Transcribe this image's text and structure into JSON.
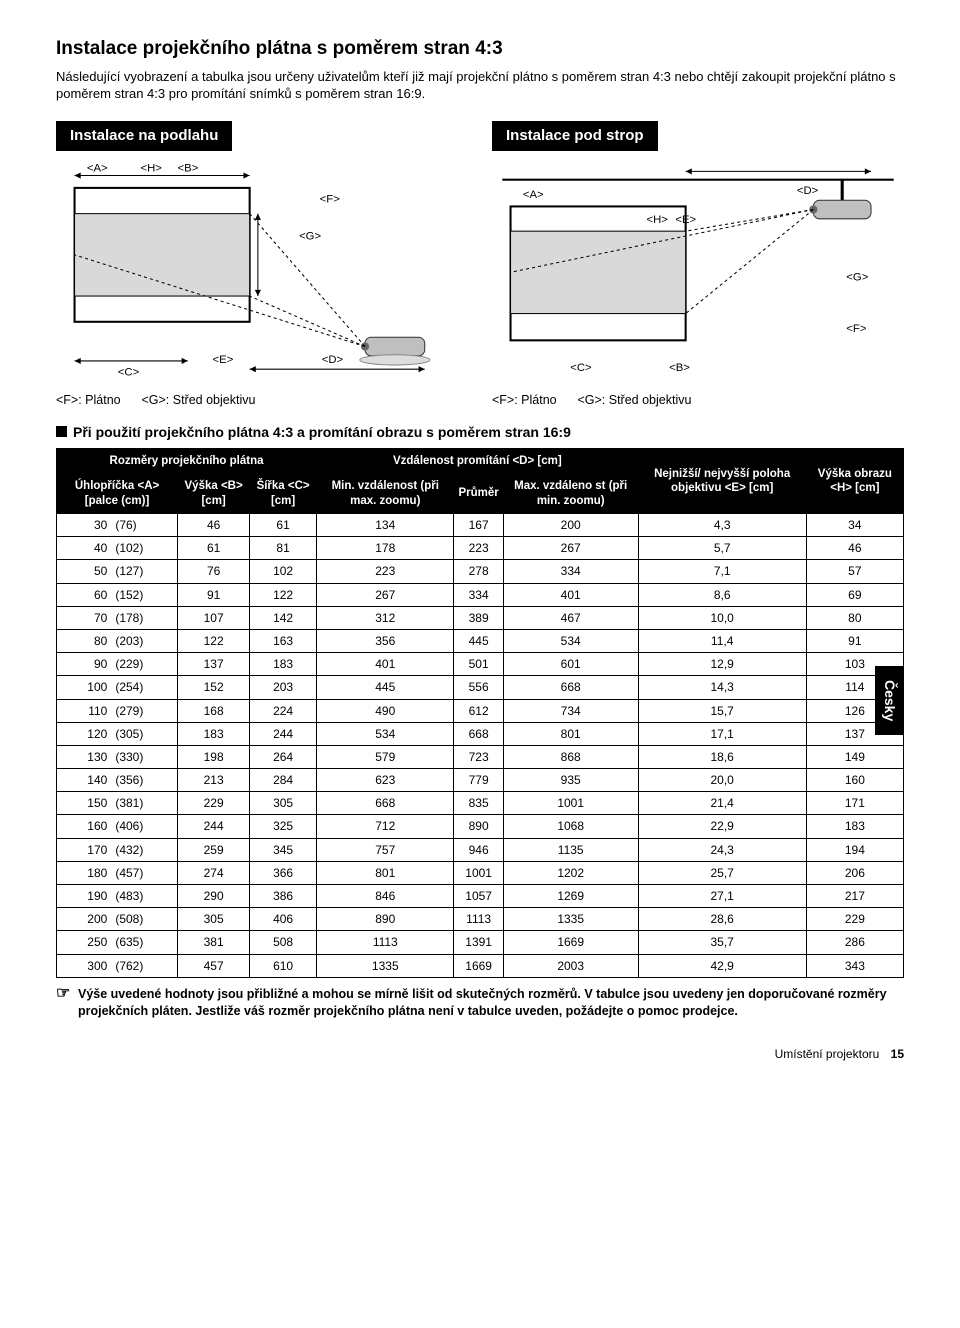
{
  "title": "Instalace projekčního plátna s poměrem stran 4:3",
  "intro": "Následující vyobrazení a tabulka jsou určeny uživatelům kteří již mají projekční plátno s poměrem stran 4:3 nebo chtějí zakoupit projekční plátno s poměrem stran 4:3 pro promítání snímků s poměrem stran 16:9.",
  "diagram_floor_heading": "Instalace na podlahu",
  "diagram_ceiling_heading": "Instalace pod strop",
  "legend_f": "<F>: Plátno",
  "legend_g": "<G>: Střed objektivu",
  "subheading": "Při použití projekčního plátna 4:3 a promítání obrazu s poměrem stran 16:9",
  "table": {
    "header_screen_dims": "Rozměry projekčního plátna",
    "header_distance": "Vzdálenost promítání <D> [cm]",
    "col_diag": "Úhlopříčka <A> [palce (cm)]",
    "col_height": "Výška <B> [cm]",
    "col_width": "Šířka <C> [cm]",
    "col_min": "Min. vzdálenost (při max. zoomu)",
    "col_avg": "Průměr",
    "col_max": "Max. vzdáleno st (při min. zoomu)",
    "col_lens": "Nejnižší/ nejvyšší poloha objektivu <E> [cm]",
    "col_imgh": "Výška obrazu <H> [cm]",
    "rows": [
      {
        "in": "30",
        "cm": "(76)",
        "b": "46",
        "c": "61",
        "min": "134",
        "avg": "167",
        "max": "200",
        "e": "4,3",
        "h": "34"
      },
      {
        "in": "40",
        "cm": "(102)",
        "b": "61",
        "c": "81",
        "min": "178",
        "avg": "223",
        "max": "267",
        "e": "5,7",
        "h": "46"
      },
      {
        "in": "50",
        "cm": "(127)",
        "b": "76",
        "c": "102",
        "min": "223",
        "avg": "278",
        "max": "334",
        "e": "7,1",
        "h": "57"
      },
      {
        "in": "60",
        "cm": "(152)",
        "b": "91",
        "c": "122",
        "min": "267",
        "avg": "334",
        "max": "401",
        "e": "8,6",
        "h": "69"
      },
      {
        "in": "70",
        "cm": "(178)",
        "b": "107",
        "c": "142",
        "min": "312",
        "avg": "389",
        "max": "467",
        "e": "10,0",
        "h": "80"
      },
      {
        "in": "80",
        "cm": "(203)",
        "b": "122",
        "c": "163",
        "min": "356",
        "avg": "445",
        "max": "534",
        "e": "11,4",
        "h": "91"
      },
      {
        "in": "90",
        "cm": "(229)",
        "b": "137",
        "c": "183",
        "min": "401",
        "avg": "501",
        "max": "601",
        "e": "12,9",
        "h": "103"
      },
      {
        "in": "100",
        "cm": "(254)",
        "b": "152",
        "c": "203",
        "min": "445",
        "avg": "556",
        "max": "668",
        "e": "14,3",
        "h": "114"
      },
      {
        "in": "110",
        "cm": "(279)",
        "b": "168",
        "c": "224",
        "min": "490",
        "avg": "612",
        "max": "734",
        "e": "15,7",
        "h": "126"
      },
      {
        "in": "120",
        "cm": "(305)",
        "b": "183",
        "c": "244",
        "min": "534",
        "avg": "668",
        "max": "801",
        "e": "17,1",
        "h": "137"
      },
      {
        "in": "130",
        "cm": "(330)",
        "b": "198",
        "c": "264",
        "min": "579",
        "avg": "723",
        "max": "868",
        "e": "18,6",
        "h": "149"
      },
      {
        "in": "140",
        "cm": "(356)",
        "b": "213",
        "c": "284",
        "min": "623",
        "avg": "779",
        "max": "935",
        "e": "20,0",
        "h": "160"
      },
      {
        "in": "150",
        "cm": "(381)",
        "b": "229",
        "c": "305",
        "min": "668",
        "avg": "835",
        "max": "1001",
        "e": "21,4",
        "h": "171"
      },
      {
        "in": "160",
        "cm": "(406)",
        "b": "244",
        "c": "325",
        "min": "712",
        "avg": "890",
        "max": "1068",
        "e": "22,9",
        "h": "183"
      },
      {
        "in": "170",
        "cm": "(432)",
        "b": "259",
        "c": "345",
        "min": "757",
        "avg": "946",
        "max": "1135",
        "e": "24,3",
        "h": "194"
      },
      {
        "in": "180",
        "cm": "(457)",
        "b": "274",
        "c": "366",
        "min": "801",
        "avg": "1001",
        "max": "1202",
        "e": "25,7",
        "h": "206"
      },
      {
        "in": "190",
        "cm": "(483)",
        "b": "290",
        "c": "386",
        "min": "846",
        "avg": "1057",
        "max": "1269",
        "e": "27,1",
        "h": "217"
      },
      {
        "in": "200",
        "cm": "(508)",
        "b": "305",
        "c": "406",
        "min": "890",
        "avg": "1113",
        "max": "1335",
        "e": "28,6",
        "h": "229"
      },
      {
        "in": "250",
        "cm": "(635)",
        "b": "381",
        "c": "508",
        "min": "1113",
        "avg": "1391",
        "max": "1669",
        "e": "35,7",
        "h": "286"
      },
      {
        "in": "300",
        "cm": "(762)",
        "b": "457",
        "c": "610",
        "min": "1335",
        "avg": "1669",
        "max": "2003",
        "e": "42,9",
        "h": "343"
      }
    ]
  },
  "footnote": "Výše uvedené hodnoty jsou přibližné a mohou se mírně lišit od skutečných rozměrů. V tabulce jsou uvedeny jen doporučované rozměry projekčních pláten. Jestliže váš rozměr projekčního plátna není v tabulce uveden, požádejte o pomoc prodejce.",
  "side_tab": "Česky",
  "footer_section": "Umístění projektoru",
  "footer_page": "15"
}
